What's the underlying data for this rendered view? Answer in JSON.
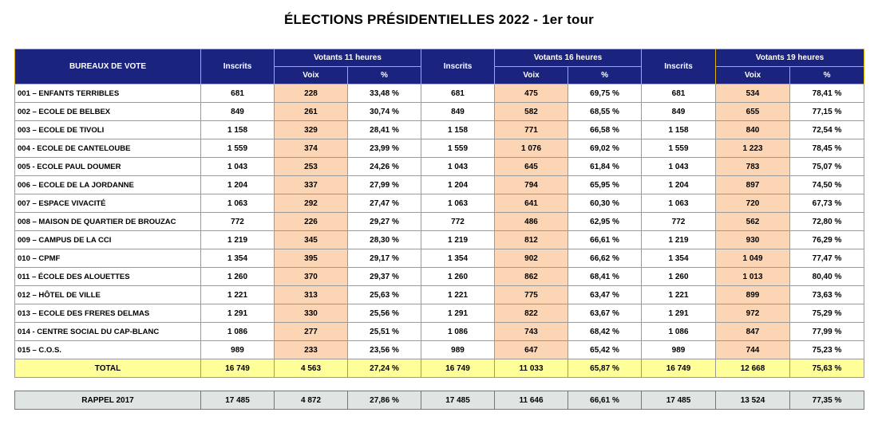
{
  "title": "ÉLECTIONS PRÉSIDENTIELLES 2022 - 1er tour",
  "headers": {
    "bureaux": "BUREAUX DE VOTE",
    "inscrits": "Inscrits",
    "votants_11": "Votants 11 heures",
    "votants_16": "Votants 16 heures",
    "votants_19": "Votants 19 heures",
    "voix": "Voix",
    "pct": "%"
  },
  "rows": [
    {
      "name": "001 – ENFANTS TERRIBLES",
      "i1": "681",
      "v11": "228",
      "p11": "33,48 %",
      "i2": "681",
      "v16": "475",
      "p16": "69,75 %",
      "i3": "681",
      "v19": "534",
      "p19": "78,41 %"
    },
    {
      "name": "002 – ECOLE DE BELBEX",
      "i1": "849",
      "v11": "261",
      "p11": "30,74 %",
      "i2": "849",
      "v16": "582",
      "p16": "68,55 %",
      "i3": "849",
      "v19": "655",
      "p19": "77,15 %"
    },
    {
      "name": "003 – ECOLE DE TIVOLI",
      "i1": "1 158",
      "v11": "329",
      "p11": "28,41 %",
      "i2": "1 158",
      "v16": "771",
      "p16": "66,58 %",
      "i3": "1 158",
      "v19": "840",
      "p19": "72,54 %"
    },
    {
      "name": "004 - ECOLE DE CANTELOUBE",
      "i1": "1 559",
      "v11": "374",
      "p11": "23,99 %",
      "i2": "1 559",
      "v16": "1 076",
      "p16": "69,02 %",
      "i3": "1 559",
      "v19": "1 223",
      "p19": "78,45 %"
    },
    {
      "name": "005 -  ECOLE PAUL DOUMER",
      "i1": "1 043",
      "v11": "253",
      "p11": "24,26 %",
      "i2": "1 043",
      "v16": "645",
      "p16": "61,84 %",
      "i3": "1 043",
      "v19": "783",
      "p19": "75,07 %"
    },
    {
      "name": "006 – ECOLE DE LA JORDANNE",
      "i1": "1 204",
      "v11": "337",
      "p11": "27,99 %",
      "i2": "1 204",
      "v16": "794",
      "p16": "65,95 %",
      "i3": "1 204",
      "v19": "897",
      "p19": "74,50 %"
    },
    {
      "name": "007 – ESPACE VIVACITÉ",
      "i1": "1 063",
      "v11": "292",
      "p11": "27,47 %",
      "i2": "1 063",
      "v16": "641",
      "p16": "60,30 %",
      "i3": "1 063",
      "v19": "720",
      "p19": "67,73 %"
    },
    {
      "name": "008 –  MAISON DE QUARTIER DE BROUZAC",
      "i1": "772",
      "v11": "226",
      "p11": "29,27 %",
      "i2": "772",
      "v16": "486",
      "p16": "62,95 %",
      "i3": "772",
      "v19": "562",
      "p19": "72,80 %"
    },
    {
      "name": "009 – CAMPUS DE LA CCI",
      "i1": "1 219",
      "v11": "345",
      "p11": "28,30 %",
      "i2": "1 219",
      "v16": "812",
      "p16": "66,61 %",
      "i3": "1 219",
      "v19": "930",
      "p19": "76,29 %"
    },
    {
      "name": "010 – CPMF",
      "i1": "1 354",
      "v11": "395",
      "p11": "29,17 %",
      "i2": "1 354",
      "v16": "902",
      "p16": "66,62 %",
      "i3": "1 354",
      "v19": "1 049",
      "p19": "77,47 %"
    },
    {
      "name": "011 – ÉCOLE DES ALOUETTES",
      "i1": "1 260",
      "v11": "370",
      "p11": "29,37 %",
      "i2": "1 260",
      "v16": "862",
      "p16": "68,41 %",
      "i3": "1 260",
      "v19": "1 013",
      "p19": "80,40 %"
    },
    {
      "name": "012 – HÔTEL DE VILLE",
      "i1": "1 221",
      "v11": "313",
      "p11": "25,63 %",
      "i2": "1 221",
      "v16": "775",
      "p16": "63,47 %",
      "i3": "1 221",
      "v19": "899",
      "p19": "73,63 %"
    },
    {
      "name": "013 – ECOLE DES FRERES DELMAS",
      "i1": "1 291",
      "v11": "330",
      "p11": "25,56 %",
      "i2": "1 291",
      "v16": "822",
      "p16": "63,67 %",
      "i3": "1 291",
      "v19": "972",
      "p19": "75,29 %"
    },
    {
      "name": "014 -  CENTRE SOCIAL DU CAP-BLANC",
      "i1": "1 086",
      "v11": "277",
      "p11": "25,51 %",
      "i2": "1 086",
      "v16": "743",
      "p16": "68,42 %",
      "i3": "1 086",
      "v19": "847",
      "p19": "77,99 %"
    },
    {
      "name": "015 – C.O.S.",
      "i1": "989",
      "v11": "233",
      "p11": "23,56 %",
      "i2": "989",
      "v16": "647",
      "p16": "65,42 %",
      "i3": "989",
      "v19": "744",
      "p19": "75,23 %"
    }
  ],
  "total": {
    "name": "TOTAL",
    "i1": "16 749",
    "v11": "4 563",
    "p11": "27,24 %",
    "i2": "16 749",
    "v16": "11 033",
    "p16": "65,87 %",
    "i3": "16 749",
    "v19": "12 668",
    "p19": "75,63 %"
  },
  "rappel": {
    "name": "RAPPEL 2017",
    "i1": "17 485",
    "v11": "4 872",
    "p11": "27,86 %",
    "i2": "17 485",
    "v16": "11 646",
    "p16": "66,61 %",
    "i3": "17 485",
    "v19": "13 524",
    "p19": "77,35 %"
  },
  "colors": {
    "header_bg": "#1a237e",
    "header_border": "#e0b000",
    "voix_bg": "#fcd5b4",
    "total_bg": "#ffff99",
    "rappel_bg": "#dfe5e3"
  }
}
